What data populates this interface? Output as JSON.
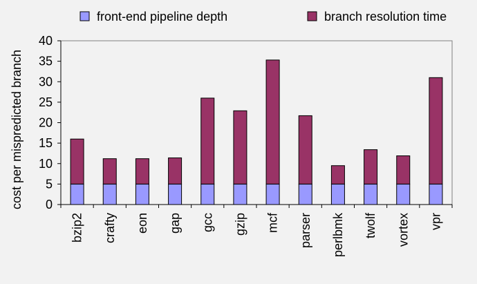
{
  "chart_data": {
    "type": "bar",
    "stacked": true,
    "categories": [
      "bzip2",
      "crafty",
      "eon",
      "gap",
      "gcc",
      "gzip",
      "mcf",
      "parser",
      "perlbmk",
      "twolf",
      "vortex",
      "vpr"
    ],
    "series": [
      {
        "name": "front-end pipeline depth",
        "color": "#9999ff",
        "values": [
          5,
          5,
          5,
          5,
          5,
          5,
          5,
          5,
          5,
          5,
          5,
          5
        ]
      },
      {
        "name": "branch resolution time",
        "color": "#993366",
        "values": [
          11,
          6.2,
          6.2,
          6.4,
          21,
          17.9,
          30.3,
          16.7,
          4.5,
          8.4,
          6.9,
          26
        ]
      }
    ],
    "ylabel": "cost per mispredicted branch",
    "xlabel": "",
    "ylim": [
      0,
      40
    ],
    "yticks": [
      0,
      5,
      10,
      15,
      20,
      25,
      30,
      35,
      40
    ],
    "grid": false,
    "legend_position": "top",
    "background": "#f2f2f2",
    "plot_background": "#f2f2f2"
  }
}
